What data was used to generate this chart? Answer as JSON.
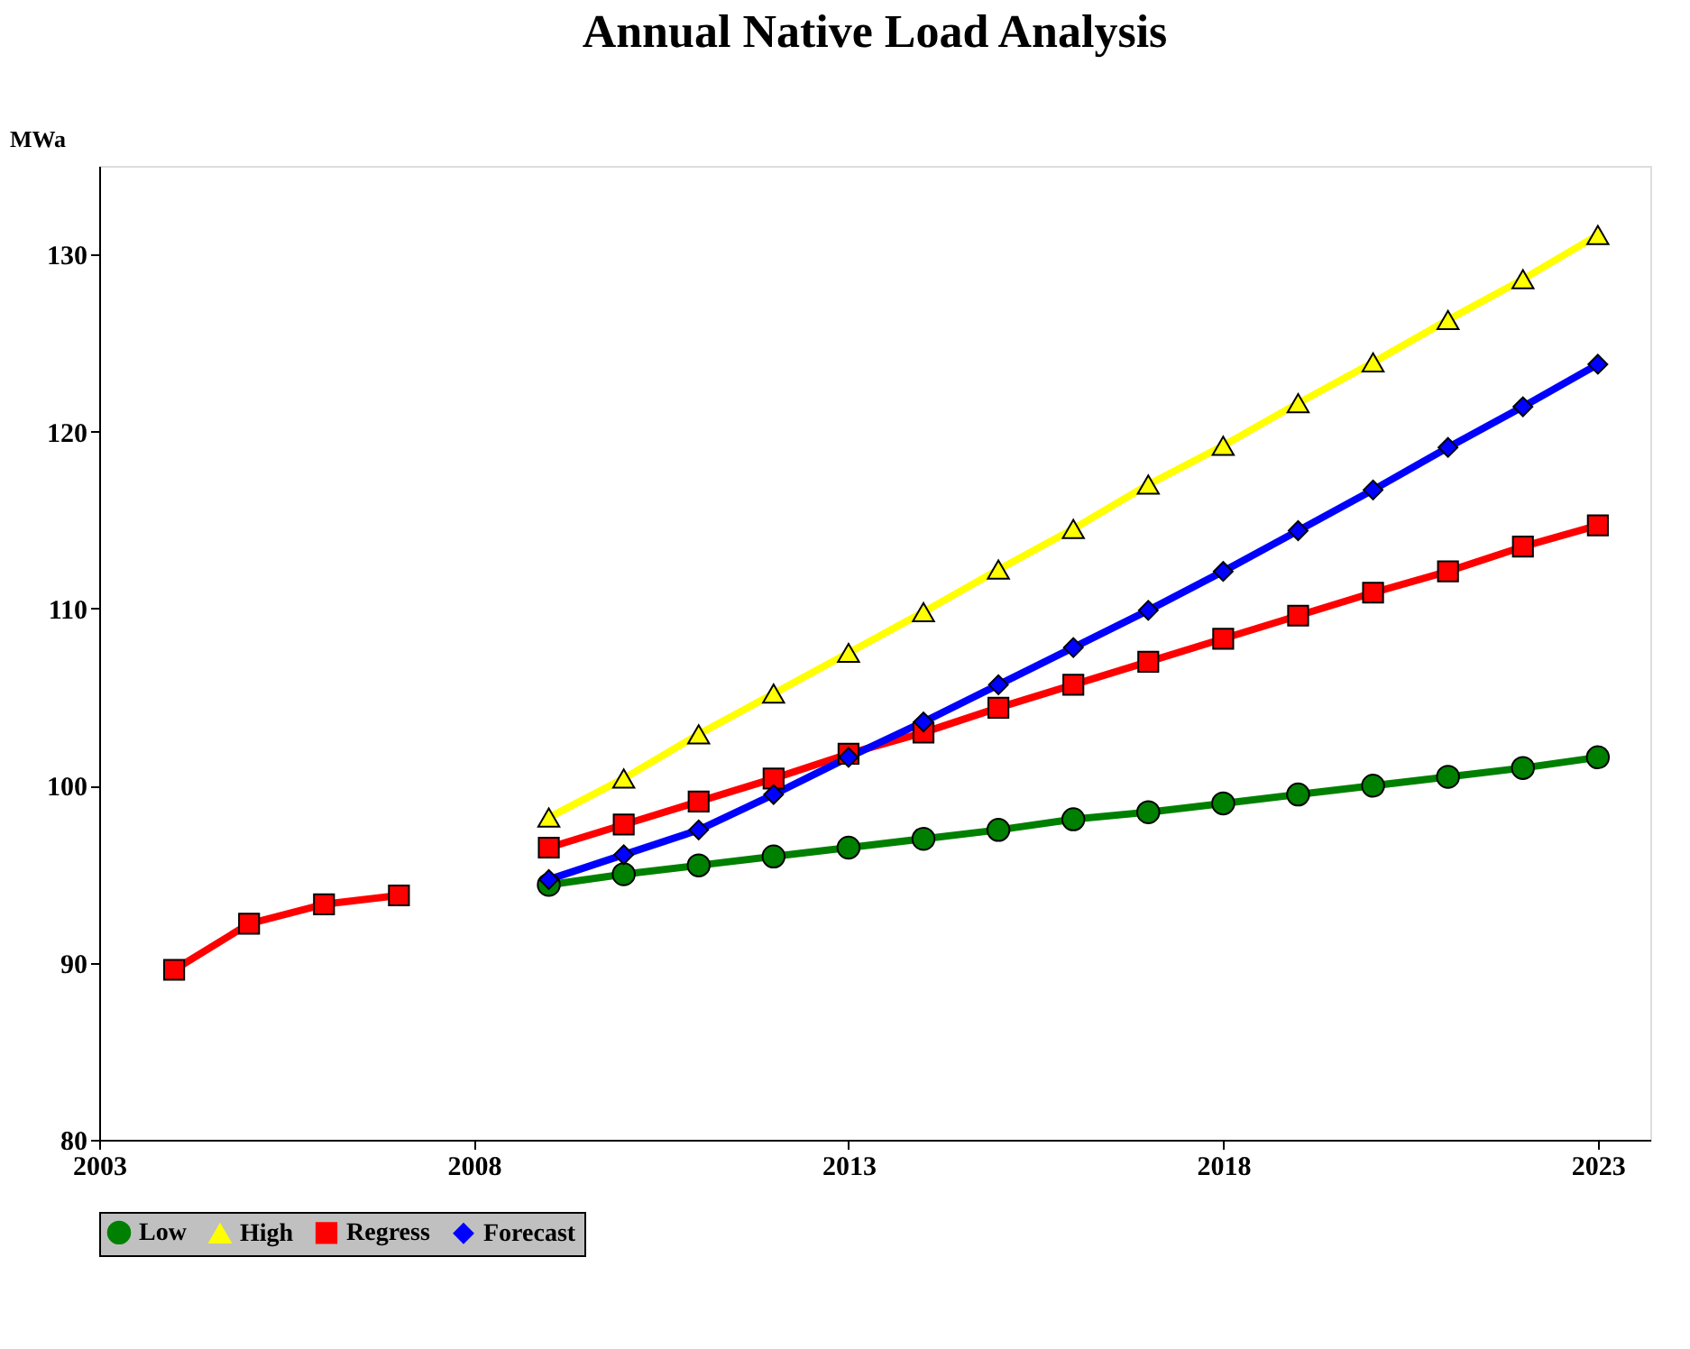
{
  "chart_data": {
    "type": "line",
    "title": "Annual Native Load Analysis",
    "ylabel": "MWa",
    "x": [
      2004,
      2005,
      2006,
      2007,
      2008,
      2009,
      2010,
      2011,
      2012,
      2013,
      2014,
      2015,
      2016,
      2017,
      2018,
      2019,
      2020,
      2021,
      2022,
      2023
    ],
    "series": [
      {
        "name": "Low",
        "color": "#008000",
        "marker": "circle",
        "values": [
          null,
          null,
          null,
          null,
          null,
          94.4,
          95.0,
          95.5,
          96.0,
          96.5,
          97.0,
          97.5,
          98.1,
          98.5,
          99.0,
          99.5,
          100.0,
          100.5,
          101.0,
          101.6
        ]
      },
      {
        "name": "High",
        "color": "#ffff00",
        "marker": "triangle",
        "values": [
          null,
          null,
          null,
          null,
          null,
          98.2,
          100.4,
          102.9,
          105.2,
          107.5,
          109.8,
          112.2,
          114.5,
          117.0,
          119.2,
          121.6,
          123.9,
          126.3,
          128.6,
          131.1
        ]
      },
      {
        "name": "Regress",
        "color": "#ff0000",
        "marker": "square",
        "values": [
          89.6,
          92.2,
          93.3,
          93.8,
          null,
          96.5,
          97.8,
          99.1,
          100.4,
          101.8,
          103.0,
          104.4,
          105.7,
          107.0,
          108.3,
          109.6,
          110.9,
          112.1,
          113.5,
          114.7
        ]
      },
      {
        "name": "Forecast",
        "color": "#0000ff",
        "marker": "diamond",
        "values": [
          null,
          null,
          null,
          null,
          null,
          94.7,
          96.1,
          97.5,
          99.5,
          101.6,
          103.6,
          105.7,
          107.8,
          109.9,
          112.1,
          114.4,
          116.7,
          119.1,
          121.4,
          123.8
        ]
      }
    ],
    "xlim": [
      2003,
      2023.7
    ],
    "xticks": [
      2003,
      2008,
      2013,
      2018,
      2023
    ],
    "ylim": [
      80,
      135
    ],
    "yticks": [
      80,
      90,
      100,
      110,
      120,
      130
    ],
    "grid": false,
    "legend": "bottom",
    "line_style": "solid"
  }
}
